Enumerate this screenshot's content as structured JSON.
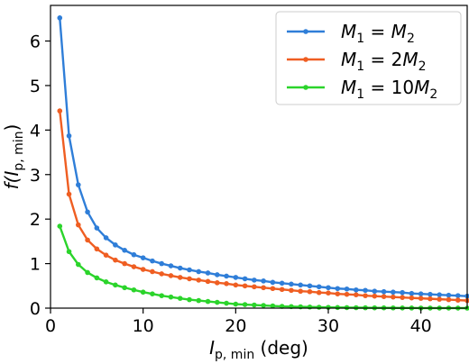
{
  "chart_data": {
    "type": "line",
    "xlabel": "I_p,min (deg)",
    "xlabel_main": "I",
    "xlabel_sub": "p, min",
    "xlabel_unit": " (deg)",
    "ylabel": "f(I_p,min)",
    "ylabel_prefix": "f(",
    "ylabel_main": "I",
    "ylabel_sub": "p, min",
    "ylabel_suffix": ")",
    "xlim": [
      0,
      45
    ],
    "ylim": [
      0,
      6.8
    ],
    "xticks": [
      0,
      10,
      20,
      30,
      40
    ],
    "yticks": [
      0,
      1,
      2,
      3,
      4,
      5,
      6
    ],
    "grid": false,
    "legend_position": "top-right",
    "x": [
      1,
      2,
      3,
      4,
      5,
      6,
      7,
      8,
      9,
      10,
      11,
      12,
      13,
      14,
      15,
      16,
      17,
      18,
      19,
      20,
      21,
      22,
      23,
      24,
      25,
      26,
      27,
      28,
      29,
      30,
      31,
      32,
      33,
      34,
      35,
      36,
      37,
      38,
      39,
      40,
      41,
      42,
      43,
      44,
      45
    ],
    "series": [
      {
        "name": "M_1 = M_2",
        "legend_parts": [
          {
            "t": "M",
            "i": true
          },
          {
            "t": "1",
            "sub": true
          },
          {
            "t": " = "
          },
          {
            "t": "M",
            "i": true
          },
          {
            "t": "2",
            "sub": true
          }
        ],
        "color": "#2f7ed8",
        "values": [
          6.52,
          3.87,
          2.77,
          2.16,
          1.8,
          1.58,
          1.42,
          1.3,
          1.2,
          1.13,
          1.06,
          1.0,
          0.95,
          0.9,
          0.86,
          0.82,
          0.79,
          0.75,
          0.72,
          0.69,
          0.66,
          0.63,
          0.61,
          0.58,
          0.56,
          0.54,
          0.52,
          0.5,
          0.48,
          0.46,
          0.44,
          0.43,
          0.41,
          0.4,
          0.38,
          0.37,
          0.36,
          0.35,
          0.33,
          0.32,
          0.31,
          0.3,
          0.29,
          0.28,
          0.27
        ]
      },
      {
        "name": "M_1 = 2M_2",
        "legend_parts": [
          {
            "t": "M",
            "i": true
          },
          {
            "t": "1",
            "sub": true
          },
          {
            "t": " = 2"
          },
          {
            "t": "M",
            "i": true
          },
          {
            "t": "2",
            "sub": true
          }
        ],
        "color": "#ef5e22",
        "values": [
          4.43,
          2.56,
          1.87,
          1.53,
          1.33,
          1.19,
          1.08,
          1.0,
          0.93,
          0.87,
          0.82,
          0.77,
          0.73,
          0.69,
          0.66,
          0.63,
          0.6,
          0.57,
          0.55,
          0.52,
          0.5,
          0.48,
          0.46,
          0.44,
          0.42,
          0.4,
          0.38,
          0.37,
          0.35,
          0.34,
          0.32,
          0.31,
          0.3,
          0.28,
          0.27,
          0.26,
          0.25,
          0.24,
          0.23,
          0.22,
          0.21,
          0.2,
          0.19,
          0.18,
          0.17
        ]
      },
      {
        "name": "M_1 = 10M_2",
        "legend_parts": [
          {
            "t": "M",
            "i": true
          },
          {
            "t": "1",
            "sub": true
          },
          {
            "t": " = 10"
          },
          {
            "t": "M",
            "i": true
          },
          {
            "t": "2",
            "sub": true
          }
        ],
        "color": "#2bd42b",
        "values": [
          1.84,
          1.27,
          0.98,
          0.8,
          0.68,
          0.59,
          0.52,
          0.46,
          0.41,
          0.36,
          0.32,
          0.28,
          0.25,
          0.22,
          0.19,
          0.17,
          0.15,
          0.13,
          0.11,
          0.09,
          0.08,
          0.07,
          0.06,
          0.05,
          0.04,
          0.035,
          0.03,
          0.025,
          0.02,
          0.017,
          0.014,
          0.012,
          0.01,
          0.008,
          0.007,
          0.006,
          0.005,
          0.004,
          0.003,
          0.002,
          0.002,
          0.001,
          0.001,
          0.001,
          0.0
        ]
      }
    ]
  }
}
